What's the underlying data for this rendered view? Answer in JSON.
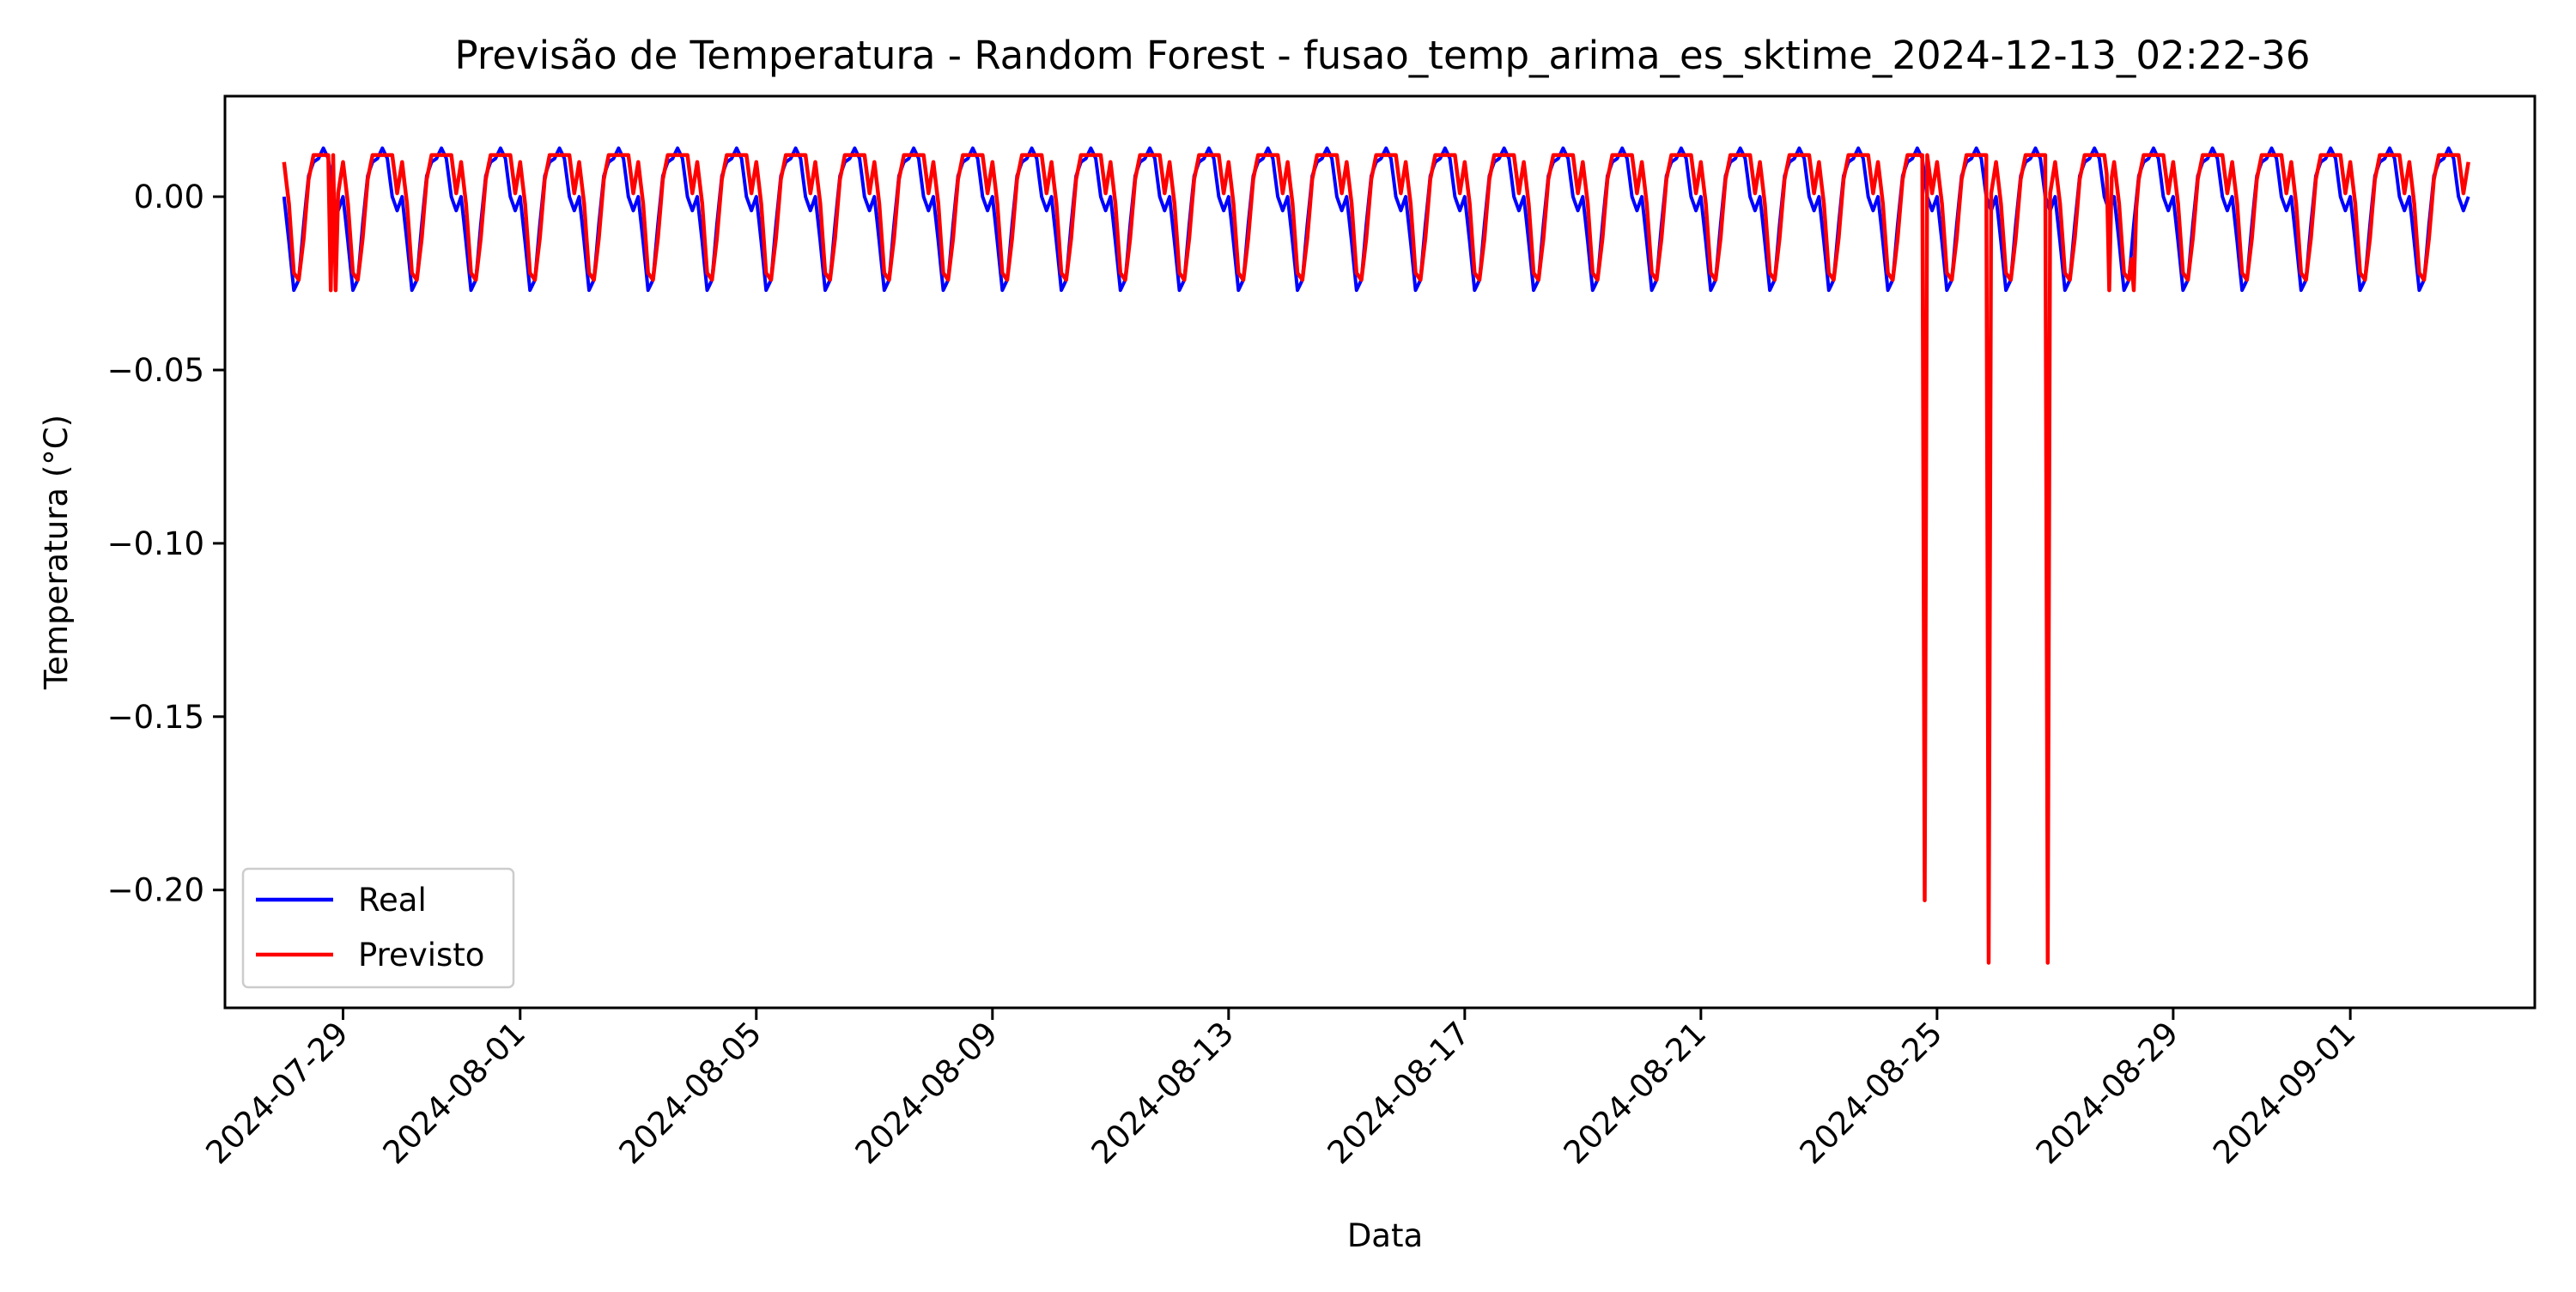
{
  "chart_data": {
    "type": "line",
    "title": "Previsão de Temperatura - Random Forest - fusao_temp_arima_es_sktime_2024-12-13_02:22-36",
    "xlabel": "Data",
    "ylabel": "Temperatura (°C)",
    "x_axis": {
      "type": "date",
      "range": [
        "2024-07-27T00:00",
        "2024-09-04T03:00"
      ],
      "ticks": [
        "2024-07-29",
        "2024-08-01",
        "2024-08-05",
        "2024-08-09",
        "2024-08-13",
        "2024-08-17",
        "2024-08-21",
        "2024-08-25",
        "2024-08-29",
        "2024-09-01"
      ]
    },
    "y_axis": {
      "range": [
        -0.234,
        0.029
      ],
      "ticks": [
        0.0,
        -0.05,
        -0.1,
        -0.15,
        -0.2
      ],
      "tick_labels": [
        "0.00",
        "−0.05",
        "−0.10",
        "−0.15",
        "−0.20"
      ]
    },
    "grid": false,
    "legend": {
      "position": "lower-left"
    },
    "data_start": "2024-07-28T00:00",
    "data_end": "2024-09-03T00:00",
    "series": [
      {
        "name": "Real",
        "color": "#0000ff",
        "daily_cycle_hours": [
          0,
          2,
          4,
          6,
          8,
          10,
          12,
          14,
          16,
          18,
          20,
          22
        ],
        "daily_cycle_values": [
          0.0,
          -0.013,
          -0.027,
          -0.024,
          -0.008,
          0.006,
          0.01,
          0.011,
          0.014,
          0.011,
          0.0,
          -0.004
        ]
      },
      {
        "name": "Previsto",
        "color": "#ff0000",
        "daily_cycle_hours": [
          0,
          2,
          4,
          6,
          8,
          10,
          12,
          14,
          16,
          18,
          20,
          22
        ],
        "daily_cycle_values": [
          0.01,
          -0.002,
          -0.022,
          -0.024,
          -0.012,
          0.005,
          0.012,
          0.012,
          0.012,
          0.012,
          0.012,
          0.001
        ],
        "anomalies": [
          {
            "date": "2024-07-28T19:00",
            "value": -0.027
          },
          {
            "date": "2024-07-28T21:00",
            "value": -0.027
          },
          {
            "date": "2024-08-24T19:00",
            "value": -0.203
          },
          {
            "date": "2024-08-25T21:00",
            "value": -0.221
          },
          {
            "date": "2024-08-26T21:00",
            "value": -0.221
          },
          {
            "date": "2024-08-27T22:00",
            "value": -0.027
          },
          {
            "date": "2024-08-28T08:00",
            "value": -0.027
          }
        ]
      }
    ]
  }
}
